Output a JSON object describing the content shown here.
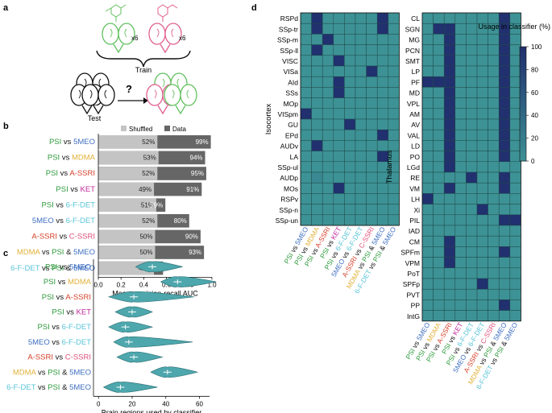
{
  "panel_letters": [
    "a",
    "b",
    "c",
    "d"
  ],
  "panel_a": {
    "train_label": "Train",
    "test_label": "Test",
    "multiplier": "x6",
    "question": "?"
  },
  "colors": {
    "PSI": "#2e9a3c",
    "5MEO": "#3f6fc2",
    "MDMA": "#e2b23a",
    "A-SSRI": "#d6402b",
    "KET": "#c3299e",
    "6-F-DET": "#58c4d8",
    "C-SSRI": "#e0507a",
    "black": "#111111",
    "shuffled": "#c4c4c4",
    "data": "#666666",
    "violin": "#4da7ad",
    "heat_low": "#3d9295",
    "heat_high": "#21306e",
    "green_mouse": "#63c160",
    "pink_mouse": "#e06090"
  },
  "comparisons": [
    {
      "parts": [
        {
          "t": "PSI",
          "c": "PSI"
        },
        {
          "t": " vs ",
          "c": "black"
        },
        {
          "t": "5MEO",
          "c": "5MEO"
        }
      ]
    },
    {
      "parts": [
        {
          "t": "PSI",
          "c": "PSI"
        },
        {
          "t": " vs ",
          "c": "black"
        },
        {
          "t": "MDMA",
          "c": "MDMA"
        }
      ]
    },
    {
      "parts": [
        {
          "t": "PSI",
          "c": "PSI"
        },
        {
          "t": " vs ",
          "c": "black"
        },
        {
          "t": "A-SSRI",
          "c": "A-SSRI"
        }
      ]
    },
    {
      "parts": [
        {
          "t": "PSI",
          "c": "PSI"
        },
        {
          "t": " vs ",
          "c": "black"
        },
        {
          "t": "KET",
          "c": "KET"
        }
      ]
    },
    {
      "parts": [
        {
          "t": "PSI",
          "c": "PSI"
        },
        {
          "t": " vs ",
          "c": "black"
        },
        {
          "t": "6-F-DET",
          "c": "6-F-DET"
        }
      ]
    },
    {
      "parts": [
        {
          "t": "5MEO",
          "c": "5MEO"
        },
        {
          "t": " vs ",
          "c": "black"
        },
        {
          "t": "6-F-DET",
          "c": "6-F-DET"
        }
      ]
    },
    {
      "parts": [
        {
          "t": "A-SSRI",
          "c": "A-SSRI"
        },
        {
          "t": " vs ",
          "c": "black"
        },
        {
          "t": "C-SSRI",
          "c": "C-SSRI"
        }
      ]
    },
    {
      "parts": [
        {
          "t": "MDMA",
          "c": "MDMA"
        },
        {
          "t": " vs ",
          "c": "black"
        },
        {
          "t": "PSI",
          "c": "PSI"
        },
        {
          "t": " & ",
          "c": "black"
        },
        {
          "t": "5MEO",
          "c": "5MEO"
        }
      ]
    },
    {
      "parts": [
        {
          "t": "6-F-DET",
          "c": "6-F-DET"
        },
        {
          "t": " vs ",
          "c": "black"
        },
        {
          "t": "PSI",
          "c": "PSI"
        },
        {
          "t": " & ",
          "c": "black"
        },
        {
          "t": "5MEO",
          "c": "5MEO"
        }
      ]
    }
  ],
  "chart_data": [
    {
      "type": "bar",
      "panel": "b",
      "orientation": "horizontal",
      "xlabel": "Mean precision-recall AUC",
      "xlim": [
        0,
        1.0
      ],
      "xticks": [
        "0.0",
        "0.2",
        "0.4",
        "0.6",
        "0.8",
        "1.0"
      ],
      "series": [
        {
          "name": "Shuffled",
          "values": [
            0.52,
            0.53,
            0.52,
            0.49,
            0.51,
            0.52,
            0.5,
            0.5,
            0.49
          ],
          "labels": [
            "52%",
            "53%",
            "52%",
            "49%",
            "51%",
            "52%",
            "50%",
            "50%",
            "49%"
          ]
        },
        {
          "name": "Data",
          "values": [
            0.99,
            0.94,
            0.95,
            0.91,
            0.59,
            0.8,
            0.9,
            0.93,
            0.57
          ],
          "labels": [
            "99%",
            "94%",
            "95%",
            "91%",
            "59%",
            "80%",
            "90%",
            "93%",
            "57%"
          ]
        }
      ]
    },
    {
      "type": "violin",
      "panel": "c",
      "xlabel": "Brain regions used by classifier",
      "xlim": [
        -3,
        66
      ],
      "xticks": [
        "0",
        "20",
        "40",
        "60"
      ],
      "medians": [
        32,
        47,
        21,
        20,
        16,
        18,
        21,
        41,
        13
      ],
      "ranges": [
        [
          22,
          50
        ],
        [
          37,
          70
        ],
        [
          6,
          57
        ],
        [
          10,
          32
        ],
        [
          6,
          32
        ],
        [
          9,
          56
        ],
        [
          11,
          38
        ],
        [
          31,
          59
        ],
        [
          3,
          35
        ]
      ]
    },
    {
      "type": "heatmap",
      "panel": "d",
      "colorbar_label": "Usage in classifier (%)",
      "colorbar_ticks": [
        "0",
        "20",
        "40",
        "60",
        "80",
        "100"
      ],
      "x_categories_index": "comparisons",
      "groups": [
        {
          "name": "Isocortex",
          "rows": [
            "RSPd",
            "SSp-tr",
            "SSp-m",
            "SSp-ll",
            "VISC",
            "VISa",
            "AId",
            "SSs",
            "MOp",
            "VISpm",
            "GU",
            "EPd",
            "AUDv",
            "LA",
            "SSp-ul",
            "AUDp",
            "MOs",
            "RSPv",
            "SSp-n",
            "SSp-un"
          ],
          "values": [
            [
              0,
              100,
              0,
              0,
              0,
              0,
              0,
              100,
              0
            ],
            [
              0,
              100,
              0,
              0,
              0,
              0,
              0,
              100,
              0
            ],
            [
              0,
              0,
              100,
              0,
              0,
              0,
              0,
              0,
              0
            ],
            [
              0,
              100,
              0,
              0,
              0,
              0,
              0,
              0,
              0
            ],
            [
              0,
              0,
              0,
              100,
              0,
              0,
              0,
              0,
              0
            ],
            [
              0,
              0,
              0,
              0,
              0,
              0,
              100,
              0,
              0
            ],
            [
              0,
              0,
              0,
              100,
              0,
              0,
              0,
              0,
              0
            ],
            [
              0,
              0,
              0,
              100,
              0,
              0,
              0,
              0,
              0
            ],
            [
              0,
              0,
              0,
              0,
              0,
              0,
              0,
              0,
              0
            ],
            [
              100,
              0,
              0,
              0,
              0,
              0,
              0,
              0,
              0
            ],
            [
              0,
              0,
              0,
              0,
              100,
              0,
              0,
              0,
              0
            ],
            [
              0,
              0,
              0,
              0,
              0,
              0,
              0,
              100,
              0
            ],
            [
              0,
              100,
              0,
              0,
              0,
              0,
              0,
              0,
              0
            ],
            [
              0,
              0,
              0,
              0,
              0,
              0,
              0,
              100,
              0
            ],
            [
              0,
              0,
              0,
              0,
              0,
              0,
              0,
              0,
              0
            ],
            [
              0,
              10,
              0,
              0,
              0,
              0,
              0,
              0,
              0
            ],
            [
              0,
              0,
              0,
              100,
              0,
              0,
              0,
              0,
              0
            ],
            [
              0,
              0,
              0,
              0,
              0,
              0,
              0,
              0,
              0
            ],
            [
              0,
              0,
              0,
              0,
              0,
              0,
              0,
              0,
              0
            ],
            [
              0,
              0,
              0,
              0,
              0,
              0,
              0,
              0,
              0
            ]
          ]
        },
        {
          "name": "Thalamus",
          "rows": [
            "CL",
            "SGN",
            "MG",
            "PCN",
            "SMT",
            "LP",
            "PF",
            "MD",
            "VPL",
            "AM",
            "AV",
            "VAL",
            "LD",
            "PO",
            "LGd",
            "RE",
            "VM",
            "LH",
            "Xi",
            "PIL",
            "IAD",
            "CM",
            "SPFm",
            "VPM",
            "PoT",
            "SPFp",
            "PVT",
            "PP",
            "IntG"
          ],
          "values": [
            [
              0,
              0,
              0,
              0,
              0,
              0,
              0,
              100,
              0
            ],
            [
              0,
              100,
              100,
              0,
              0,
              0,
              0,
              100,
              0
            ],
            [
              0,
              0,
              100,
              0,
              0,
              0,
              0,
              100,
              0
            ],
            [
              0,
              0,
              100,
              0,
              0,
              0,
              0,
              100,
              0
            ],
            [
              0,
              0,
              100,
              0,
              0,
              0,
              0,
              100,
              0
            ],
            [
              0,
              0,
              100,
              0,
              0,
              0,
              0,
              100,
              0
            ],
            [
              100,
              100,
              100,
              0,
              0,
              0,
              0,
              100,
              0
            ],
            [
              0,
              0,
              100,
              0,
              0,
              0,
              0,
              100,
              0
            ],
            [
              0,
              0,
              100,
              0,
              0,
              0,
              0,
              100,
              0
            ],
            [
              0,
              0,
              100,
              0,
              0,
              0,
              0,
              100,
              0
            ],
            [
              0,
              0,
              100,
              0,
              0,
              0,
              0,
              100,
              0
            ],
            [
              0,
              0,
              100,
              0,
              0,
              0,
              0,
              100,
              0
            ],
            [
              0,
              0,
              100,
              0,
              0,
              0,
              0,
              100,
              0
            ],
            [
              0,
              0,
              100,
              0,
              0,
              0,
              0,
              100,
              0
            ],
            [
              0,
              0,
              100,
              0,
              0,
              0,
              0,
              0,
              0
            ],
            [
              0,
              0,
              0,
              0,
              100,
              0,
              0,
              100,
              0
            ],
            [
              0,
              0,
              100,
              0,
              0,
              0,
              0,
              100,
              0
            ],
            [
              100,
              0,
              0,
              0,
              0,
              0,
              0,
              0,
              0
            ],
            [
              0,
              0,
              0,
              0,
              0,
              100,
              0,
              0,
              0
            ],
            [
              0,
              0,
              0,
              0,
              0,
              0,
              0,
              100,
              100
            ],
            [
              0,
              0,
              0,
              0,
              0,
              0,
              0,
              0,
              0
            ],
            [
              0,
              0,
              100,
              0,
              0,
              0,
              0,
              0,
              0
            ],
            [
              0,
              0,
              100,
              0,
              0,
              0,
              0,
              100,
              0
            ],
            [
              0,
              0,
              100,
              0,
              0,
              0,
              0,
              0,
              0
            ],
            [
              0,
              0,
              0,
              0,
              0,
              0,
              0,
              0,
              0
            ],
            [
              0,
              0,
              0,
              0,
              0,
              100,
              0,
              0,
              0
            ],
            [
              0,
              0,
              0,
              0,
              0,
              0,
              0,
              0,
              0
            ],
            [
              0,
              0,
              0,
              0,
              0,
              0,
              0,
              100,
              0
            ],
            [
              0,
              0,
              0,
              0,
              0,
              0,
              0,
              0,
              0
            ]
          ]
        }
      ]
    }
  ]
}
